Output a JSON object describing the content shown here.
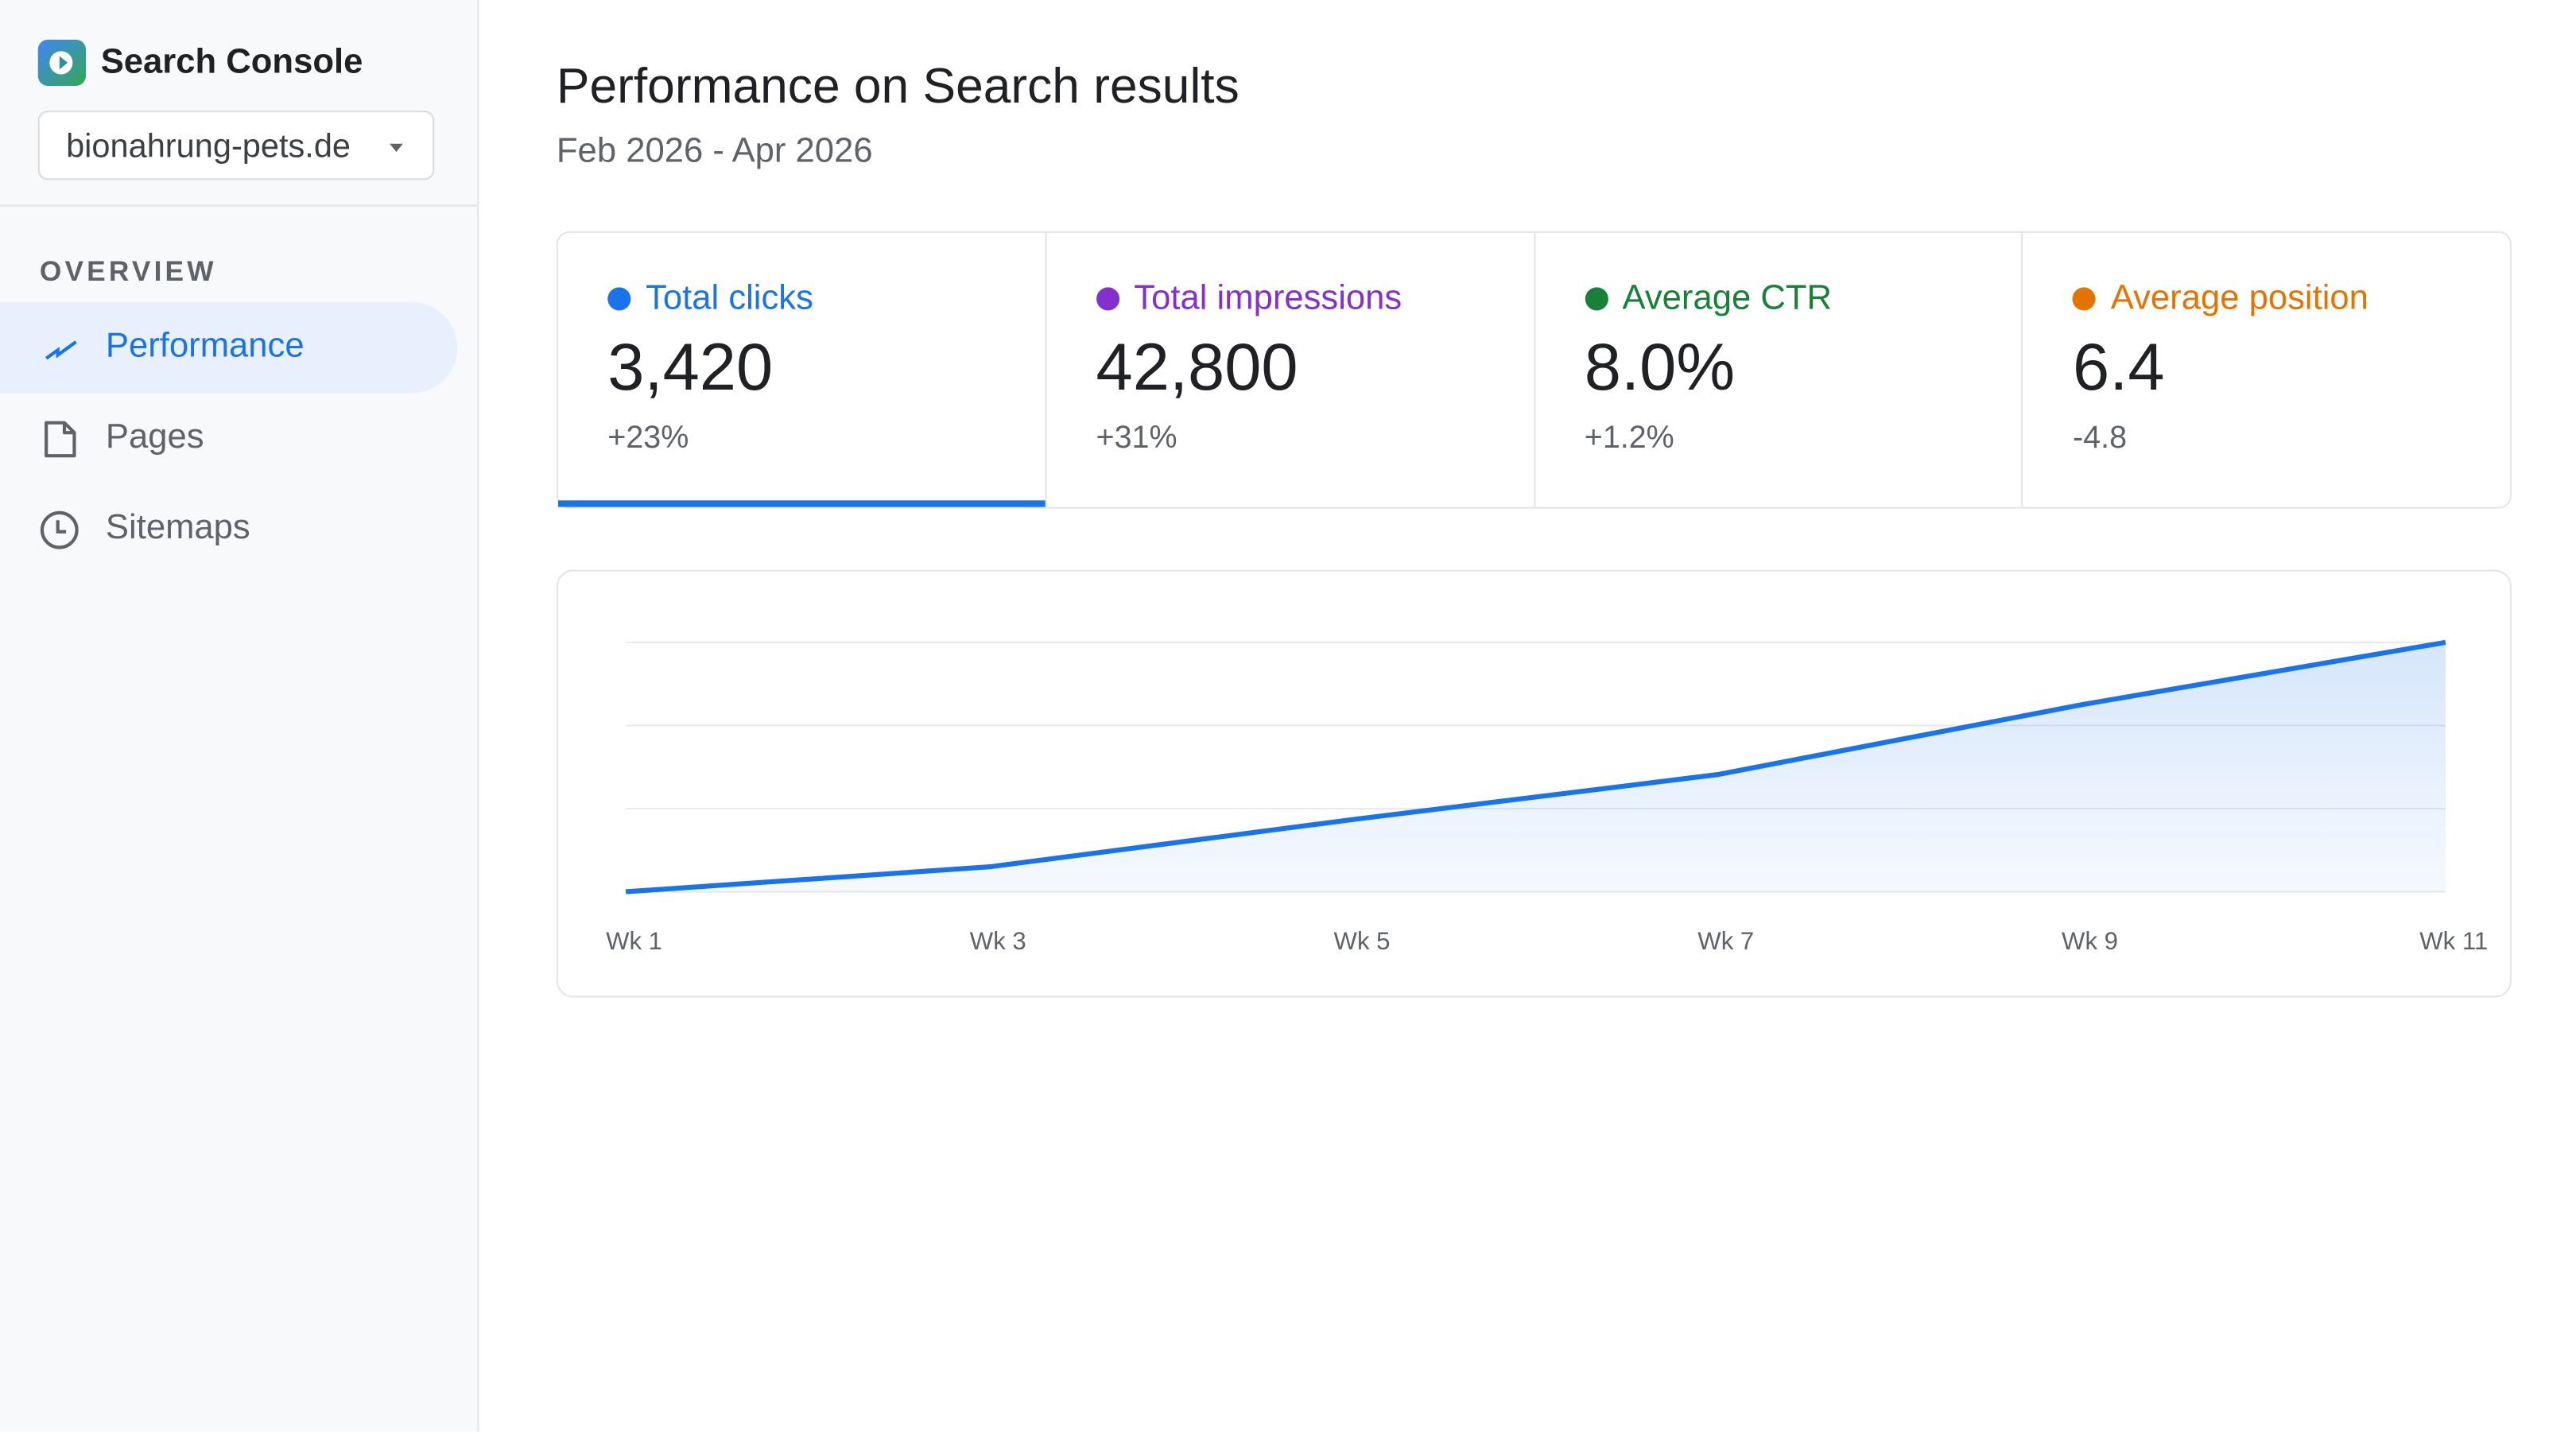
{
  "app": {
    "title": "Search Console",
    "logo_icon": "search-console-logo"
  },
  "property": {
    "value": "bionahrung-pets.de"
  },
  "sidebar": {
    "section": "OVERVIEW",
    "items": [
      {
        "label": "Performance",
        "icon": "trending-up-icon",
        "active": true
      },
      {
        "label": "Pages",
        "icon": "file-icon",
        "active": false
      },
      {
        "label": "Sitemaps",
        "icon": "clock-icon",
        "active": false
      }
    ]
  },
  "main": {
    "title": "Performance on Search results",
    "date_range": "Feb 2026 - Apr 2026",
    "metrics": [
      {
        "label": "Total clicks",
        "value": "3,420",
        "delta": "+23%",
        "color": "#1a73e8",
        "selected": true
      },
      {
        "label": "Total impressions",
        "value": "42,800",
        "delta": "+31%",
        "color": "#8430ce",
        "selected": false
      },
      {
        "label": "Average CTR",
        "value": "8.0%",
        "delta": "+1.2%",
        "color": "#188038",
        "selected": false
      },
      {
        "label": "Average position",
        "value": "6.4",
        "delta": "-4.8",
        "color": "#e37400",
        "selected": false
      }
    ]
  },
  "chart_data": {
    "type": "area",
    "categories": [
      "Wk 1",
      "Wk 3",
      "Wk 5",
      "Wk 7",
      "Wk 9",
      "Wk 11"
    ],
    "values": [
      0,
      10,
      29,
      47,
      75,
      100
    ],
    "ylim": [
      0,
      100
    ],
    "grid": true,
    "color": "#1a73e8"
  }
}
